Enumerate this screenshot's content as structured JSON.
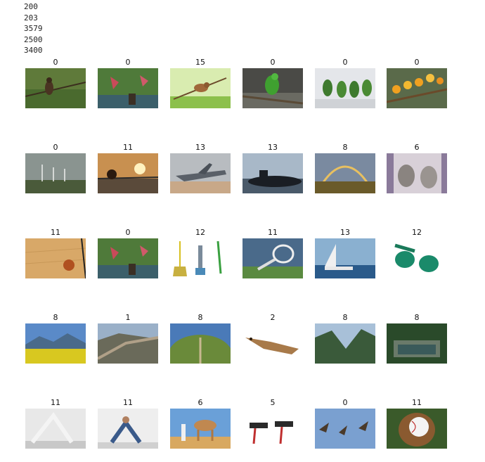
{
  "output_lines": [
    "200",
    "203",
    "3579",
    "2500",
    "3400"
  ],
  "grid": {
    "rows": [
      [
        {
          "label": "0",
          "icon": "bird-on-branch-image"
        },
        {
          "label": "0",
          "icon": "two-birds-image"
        },
        {
          "label": "15",
          "icon": "mouse-on-twig-image"
        },
        {
          "label": "0",
          "icon": "green-parrot-image"
        },
        {
          "label": "0",
          "icon": "parrots-group-image"
        },
        {
          "label": "0",
          "icon": "sun-conures-image"
        }
      ],
      [
        {
          "label": "0",
          "icon": "wind-turbines-image"
        },
        {
          "label": "11",
          "icon": "sunset-bridge-image"
        },
        {
          "label": "13",
          "icon": "fighter-jet-image"
        },
        {
          "label": "13",
          "icon": "submarine-image"
        },
        {
          "label": "8",
          "icon": "rainbow-landscape-image"
        },
        {
          "label": "6",
          "icon": "raccoons-image"
        }
      ],
      [
        {
          "label": "11",
          "icon": "basketball-court-image"
        },
        {
          "label": "0",
          "icon": "two-birds-image"
        },
        {
          "label": "12",
          "icon": "cleaning-tools-image"
        },
        {
          "label": "11",
          "icon": "tennis-racket-image"
        },
        {
          "label": "13",
          "icon": "catamaran-image"
        },
        {
          "label": "12",
          "icon": "green-clips-image"
        }
      ],
      [
        {
          "label": "8",
          "icon": "flower-meadow-image"
        },
        {
          "label": "1",
          "icon": "great-wall-image"
        },
        {
          "label": "8",
          "icon": "fisheye-landscape-image"
        },
        {
          "label": "2",
          "icon": "crocodile-image"
        },
        {
          "label": "8",
          "icon": "mountain-valley-image"
        },
        {
          "label": "8",
          "icon": "garden-pond-image"
        }
      ],
      [
        {
          "label": "11",
          "icon": "yoga-pose-image"
        },
        {
          "label": "11",
          "icon": "partner-yoga-image"
        },
        {
          "label": "6",
          "icon": "camel-image"
        },
        {
          "label": "5",
          "icon": "dumbbell-workout-image"
        },
        {
          "label": "0",
          "icon": "swallows-flying-image"
        },
        {
          "label": "11",
          "icon": "baseball-glove-image"
        }
      ]
    ]
  }
}
